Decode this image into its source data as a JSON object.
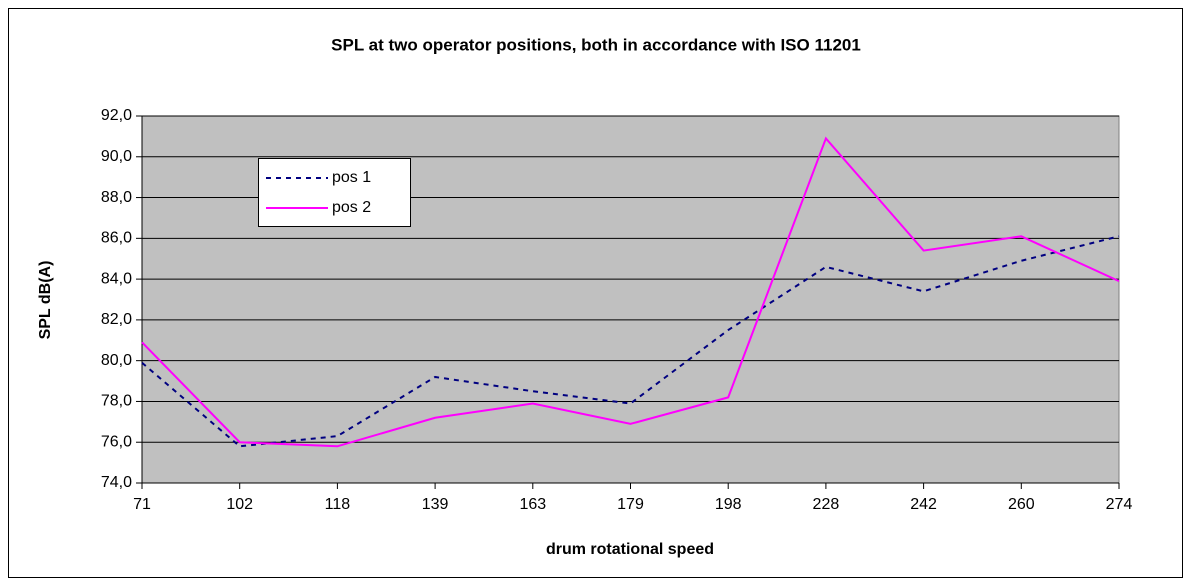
{
  "chart_data": {
    "type": "line",
    "title": "SPL at two operator positions, both in accordance with ISO 11201",
    "xlabel": "drum rotational speed",
    "ylabel": "SPL dB(A)",
    "categories": [
      "71",
      "102",
      "118",
      "139",
      "163",
      "179",
      "198",
      "228",
      "242",
      "260",
      "274"
    ],
    "series": [
      {
        "name": "pos 1",
        "color": "#000080",
        "dash": true,
        "values": [
          79.9,
          75.8,
          76.3,
          79.2,
          78.5,
          77.9,
          81.5,
          84.6,
          83.4,
          84.9,
          86.1
        ]
      },
      {
        "name": "pos 2",
        "color": "#ff00ff",
        "dash": false,
        "values": [
          80.9,
          76.0,
          75.8,
          77.2,
          77.9,
          76.9,
          78.2,
          90.9,
          85.4,
          86.1,
          83.9
        ]
      }
    ],
    "ylim": [
      74,
      92
    ],
    "yticks": [
      {
        "value": 74,
        "label": "74,0"
      },
      {
        "value": 76,
        "label": "76,0"
      },
      {
        "value": 78,
        "label": "78,0"
      },
      {
        "value": 80,
        "label": "80,0"
      },
      {
        "value": 82,
        "label": "82,0"
      },
      {
        "value": 84,
        "label": "84,0"
      },
      {
        "value": 86,
        "label": "86,0"
      },
      {
        "value": 88,
        "label": "88,0"
      },
      {
        "value": 90,
        "label": "90,0"
      },
      {
        "value": 92,
        "label": "92,0"
      }
    ],
    "grid": true,
    "legend": "upper left",
    "background": "#c0c0c0"
  }
}
